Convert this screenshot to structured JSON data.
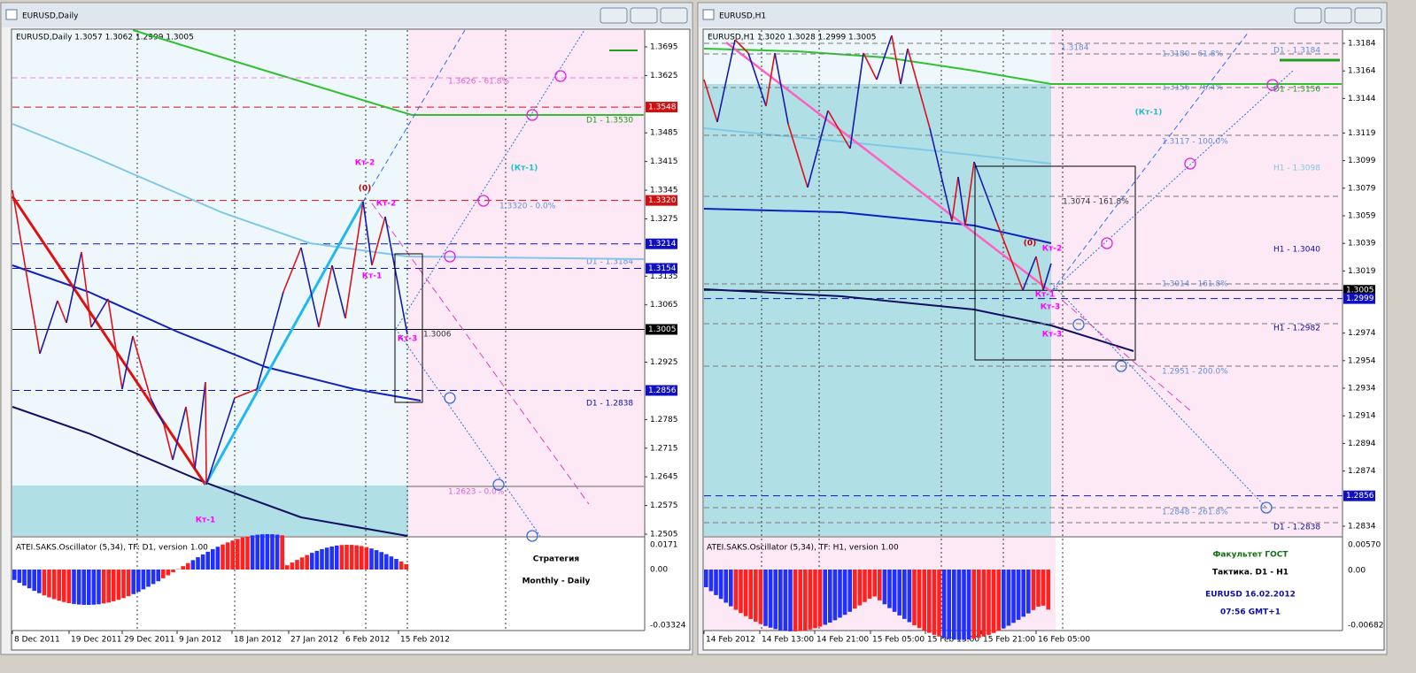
{
  "windows": [
    {
      "title": "EURUSD,Daily",
      "header": "EURUSD,Daily  1.3057 1.3062 1.2999 1.3005",
      "price_ticks": [
        "1.3695",
        "1.3625",
        "1.3485",
        "1.3415",
        "1.3345",
        "1.3275",
        "1.3135",
        "1.3065",
        "1.2925",
        "1.2785",
        "1.2715",
        "1.2645",
        "1.2575",
        "1.2505"
      ],
      "price_tags": [
        "1.3548",
        "1.3320",
        "1.3214",
        "1.3154",
        "1.3005",
        "1.2856"
      ],
      "level_labels": [
        "1.3626 - 61.8%",
        "D1 - 1.3530",
        "1.3320 - 0.0%",
        "D1 - 1.3184",
        "1.3006",
        "D1 - 1.2838",
        "1.2623 - 0.0%"
      ],
      "annotations": [
        "Кт-2",
        "(0)",
        "Кт-2",
        "Кт-1",
        "Кт-3",
        "(Кт-1)",
        "Кт-1"
      ],
      "oscillator": {
        "label": "ATEI.SAKS.Oscillator (5,34), TF: D1,  version 1.00",
        "ticks": [
          "0.0171",
          "0.00",
          "-0.03324"
        ]
      },
      "caption": [
        "Стратегия",
        "Monthly - Daily"
      ],
      "dates": [
        "8 Dec 2011",
        "19 Dec 2011",
        "29 Dec 2011",
        "9 Jan 2012",
        "18 Jan 2012",
        "27 Jan 2012",
        "6 Feb 2012",
        "15 Feb 2012"
      ]
    },
    {
      "title": "EURUSD,H1",
      "header": "EURUSD,H1  1.3020 1.3028 1.2999 1.3005",
      "price_ticks": [
        "1.3184",
        "1.3164",
        "1.3144",
        "1.3119",
        "1.3099",
        "1.3079",
        "1.3059",
        "1.3039",
        "1.3019",
        "1.2974",
        "1.2954",
        "1.2934",
        "1.2914",
        "1.2894",
        "1.2874",
        "1.2834"
      ],
      "price_tags": [
        "1.3005",
        "1.2999",
        "1.2856"
      ],
      "level_labels": [
        "1.3184",
        "1.3180 - 61.8%",
        "D1 - 1.3184",
        "1.3156 - 76.4%",
        "D1 - 1.3156",
        "1.3117 - 100.0%",
        "H1 - 1.3098",
        "1.3074 - 161.8%",
        "H1 - 1.3040",
        "1.3014 - 161.8%",
        "H1 - 1.2982",
        "1.2951 - 200.0%",
        "1.2848 - 261.8%",
        "D1 - 1.2838"
      ],
      "annotations": [
        "(Кт-1)",
        "(0)",
        "Кт-2",
        "Кт-1",
        "Кт-3",
        "Кт-3"
      ],
      "oscillator": {
        "label": "ATEI.SAKS.Oscillator (5,34), TF: H1,  version 1.00",
        "ticks": [
          "0.00570",
          "0.00",
          "-0.00682"
        ]
      },
      "caption": [
        "Факультет ГОСТ",
        "Тактика. D1 - H1",
        "EURUSD 16.02.2012",
        "07:56 GMT+1"
      ],
      "dates": [
        "14 Feb 2012",
        "14 Feb 13:00",
        "14 Feb 21:00",
        "15 Feb 05:00",
        "15 Feb 13:00",
        "15 Feb 21:00",
        "16 Feb 05:00"
      ]
    }
  ]
}
